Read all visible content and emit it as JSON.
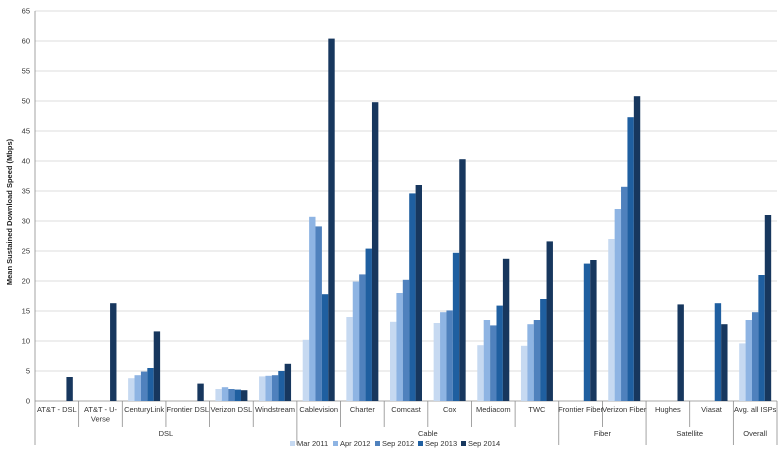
{
  "chart_data": {
    "type": "bar",
    "title": "",
    "ylabel": "Mean Sustained Download Speed (Mbps)",
    "xlabel": "",
    "ylim": [
      0,
      65
    ],
    "yticks": [
      0,
      5,
      10,
      15,
      20,
      25,
      30,
      35,
      40,
      45,
      50,
      55,
      60,
      65
    ],
    "grid": true,
    "legend_position": "bottom",
    "categories": [
      "AT&T - DSL",
      "AT&T - U-Verse",
      "CenturyLink",
      "Frontier DSL",
      "Verizon DSL",
      "Windstream",
      "Cablevision",
      "Charter",
      "Comcast",
      "Cox",
      "Mediacom",
      "TWC",
      "Frontier Fiber",
      "Verizon Fiber",
      "Hughes",
      "Viasat",
      "Avg. all ISPs"
    ],
    "groups": [
      {
        "label": "DSL",
        "span": 6
      },
      {
        "label": "Cable",
        "span": 6
      },
      {
        "label": "Fiber",
        "span": 2
      },
      {
        "label": "Satellite",
        "span": 2
      },
      {
        "label": "Overall",
        "span": 1
      }
    ],
    "series": [
      {
        "name": "Mar 2011",
        "color": "#c6d9f1",
        "values": [
          null,
          null,
          3.8,
          null,
          2.0,
          4.1,
          10.2,
          14.0,
          13.2,
          13.0,
          9.3,
          9.2,
          null,
          27.0,
          null,
          null,
          9.6
        ]
      },
      {
        "name": "Apr 2012",
        "color": "#8eb4e3",
        "values": [
          null,
          null,
          4.3,
          null,
          2.3,
          4.2,
          30.7,
          19.9,
          18.0,
          14.8,
          13.5,
          12.8,
          null,
          32.0,
          null,
          null,
          13.5
        ]
      },
      {
        "name": "Sep 2012",
        "color": "#4f81bd",
        "values": [
          null,
          null,
          4.9,
          null,
          2.0,
          4.3,
          29.1,
          21.1,
          20.2,
          15.1,
          12.6,
          13.5,
          null,
          35.7,
          null,
          null,
          14.8
        ]
      },
      {
        "name": "Sep 2013",
        "color": "#1f5fa0",
        "values": [
          null,
          null,
          5.5,
          null,
          1.9,
          5.0,
          17.8,
          25.4,
          34.6,
          24.7,
          15.9,
          17.0,
          22.9,
          47.3,
          null,
          16.3,
          21.0
        ]
      },
      {
        "name": "Sep 2014",
        "color": "#17375e",
        "values": [
          4.0,
          16.3,
          11.6,
          2.9,
          1.8,
          6.2,
          60.4,
          49.8,
          36.0,
          40.3,
          23.7,
          26.6,
          23.5,
          50.8,
          16.1,
          12.8,
          31.0
        ]
      }
    ],
    "category_labels_display": [
      [
        "AT&T - DSL"
      ],
      [
        "AT&T - U-",
        "Verse"
      ],
      [
        "CenturyLink"
      ],
      [
        "Frontier DSL"
      ],
      [
        "Verizon DSL"
      ],
      [
        "Windstream"
      ],
      [
        "Cablevision"
      ],
      [
        "Charter"
      ],
      [
        "Comcast"
      ],
      [
        "Cox"
      ],
      [
        "Mediacom"
      ],
      [
        "TWC"
      ],
      [
        "Frontier Fiber"
      ],
      [
        "Verizon Fiber"
      ],
      [
        "Hughes"
      ],
      [
        "Viasat"
      ],
      [
        "Avg. all ISPs"
      ]
    ]
  }
}
